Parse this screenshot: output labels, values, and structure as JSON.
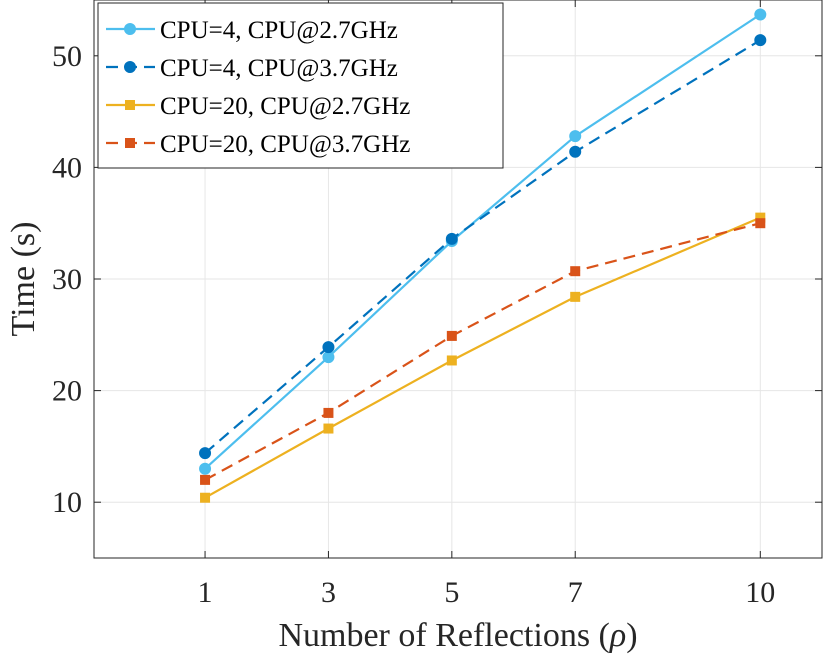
{
  "chart_data": {
    "type": "line",
    "title": "",
    "xlabel_prefix": "Number of Reflections (",
    "xlabel_symbol": "ρ",
    "xlabel_suffix": ")",
    "ylabel": "Time (s)",
    "x": [
      1,
      3,
      5,
      7,
      10
    ],
    "xlim": [
      -0.8,
      11
    ],
    "ylim": [
      5,
      55
    ],
    "xticks": [
      "1",
      "3",
      "5",
      "7",
      "10"
    ],
    "yticks": [
      "10",
      "20",
      "30",
      "40",
      "50"
    ],
    "grid": true,
    "legend_position": "top-left",
    "series": [
      {
        "name": "CPU=4, CPU@2.7GHz",
        "values": [
          13.0,
          23.0,
          33.4,
          42.8,
          53.7
        ],
        "color": "#4DBEEE",
        "dash": "solid",
        "marker": "circle"
      },
      {
        "name": "CPU=4, CPU@3.7GHz",
        "values": [
          14.4,
          23.9,
          33.6,
          41.4,
          51.4
        ],
        "color": "#0072BD",
        "dash": "dashed",
        "marker": "circle"
      },
      {
        "name": "CPU=20, CPU@2.7GHz",
        "values": [
          10.4,
          16.6,
          22.7,
          28.4,
          35.5
        ],
        "color": "#EDB120",
        "dash": "solid",
        "marker": "square"
      },
      {
        "name": "CPU=20, CPU@3.7GHz",
        "values": [
          12.0,
          18.0,
          24.9,
          30.7,
          35.0
        ],
        "color": "#D95319",
        "dash": "dashed",
        "marker": "square"
      }
    ]
  }
}
